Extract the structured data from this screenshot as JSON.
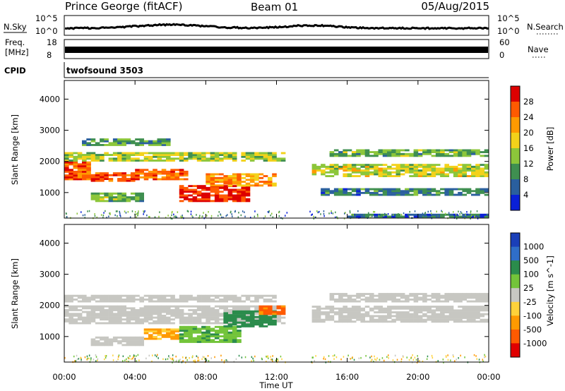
{
  "header": {
    "station": "Prince George (fitACF)",
    "beam": "Beam 01",
    "date": "05/Aug/2015"
  },
  "top_panels": {
    "nsky_label": "N.Sky",
    "nsky_ticks": [
      "10^5",
      "10^0"
    ],
    "nsearch_label": "N.Search",
    "freq_label_1": "Freq.",
    "freq_label_2": "[MHz]",
    "freq_ticks": [
      "18",
      "8"
    ],
    "nave_label": "Nave",
    "nave_ticks": [
      "60",
      "0"
    ],
    "cpid_label": "CPID",
    "cpid_value": "twofsound 3503"
  },
  "colorbars": {
    "power": {
      "label": "Power [dB]",
      "ticks": [
        "28",
        "24",
        "20",
        "16",
        "12",
        "8",
        "4"
      ],
      "colors": [
        "#dd0000",
        "#ff5a00",
        "#ff9a00",
        "#f3d21a",
        "#8cc63a",
        "#3f8f50",
        "#2a5f9e",
        "#0a20d8"
      ]
    },
    "velocity": {
      "label": "Velocity [m s^-1]",
      "ticks": [
        "1000",
        "500",
        "100",
        "25",
        "-25",
        "-100",
        "-500",
        "-1000"
      ],
      "colors": [
        "#1a3fb8",
        "#2f6ec8",
        "#2b8c4c",
        "#73c43a",
        "#c7c7c2",
        "#ffd23a",
        "#ff9a00",
        "#ff5a00",
        "#e00000"
      ]
    }
  },
  "chart_data": [
    {
      "type": "heatmap",
      "quantity": "Power",
      "ylabel": "Slant Range [km]",
      "xlabel": "Time UT",
      "x_ticks": [
        "00:00",
        "04:00",
        "08:00",
        "12:00",
        "16:00",
        "20:00",
        "00:00"
      ],
      "y_ticks": [
        1000,
        2000,
        3000,
        4000
      ],
      "ylim": [
        180,
        4600
      ],
      "xlim_hours": [
        0,
        24
      ],
      "bands": [
        {
          "t0": 0.0,
          "t1": 1.5,
          "r0": 1400,
          "r1": 1950,
          "level": 26
        },
        {
          "t0": 1.5,
          "t1": 4.0,
          "r0": 1350,
          "r1": 1650,
          "level": 27
        },
        {
          "t0": 4.0,
          "t1": 7.0,
          "r0": 1400,
          "r1": 1750,
          "level": 25
        },
        {
          "t0": 6.5,
          "t1": 10.5,
          "r0": 700,
          "r1": 1200,
          "level": 29
        },
        {
          "t0": 8.0,
          "t1": 12.0,
          "r0": 1200,
          "r1": 1600,
          "level": 22
        },
        {
          "t0": 0.0,
          "t1": 12.5,
          "r0": 2000,
          "r1": 2300,
          "level": 15
        },
        {
          "t0": 1.0,
          "t1": 6.0,
          "r0": 2500,
          "r1": 2700,
          "level": 11
        },
        {
          "t0": 1.5,
          "t1": 4.5,
          "r0": 700,
          "r1": 1000,
          "level": 12
        },
        {
          "t0": 14.0,
          "t1": 24.0,
          "r0": 1500,
          "r1": 1900,
          "level": 16
        },
        {
          "t0": 15.0,
          "t1": 24.0,
          "r0": 2150,
          "r1": 2350,
          "level": 12
        },
        {
          "t0": 14.5,
          "t1": 24.0,
          "r0": 900,
          "r1": 1100,
          "level": 8
        },
        {
          "t0": 16.0,
          "t1": 24.0,
          "r0": 200,
          "r1": 300,
          "level": 6
        }
      ]
    },
    {
      "type": "heatmap",
      "quantity": "Velocity",
      "ylabel": "Slant Range [km]",
      "xlabel": "Time UT",
      "x_ticks": [
        "00:00",
        "04:00",
        "08:00",
        "12:00",
        "16:00",
        "20:00",
        "00:00"
      ],
      "y_ticks": [
        1000,
        2000,
        3000,
        4000
      ],
      "ylim": [
        180,
        4600
      ],
      "xlim_hours": [
        0,
        24
      ],
      "bands": [
        {
          "t0": 0.0,
          "t1": 12.5,
          "r0": 1400,
          "r1": 2000,
          "level": 0
        },
        {
          "t0": 0.0,
          "t1": 12.0,
          "r0": 2100,
          "r1": 2300,
          "level": 0
        },
        {
          "t0": 4.5,
          "t1": 6.5,
          "r0": 900,
          "r1": 1250,
          "level": -120
        },
        {
          "t0": 6.5,
          "t1": 10.0,
          "r0": 800,
          "r1": 1300,
          "level": 80
        },
        {
          "t0": 9.0,
          "t1": 12.0,
          "r0": 1300,
          "r1": 1800,
          "level": 300
        },
        {
          "t0": 11.0,
          "t1": 12.5,
          "r0": 1700,
          "r1": 1950,
          "level": -700
        },
        {
          "t0": 14.0,
          "t1": 24.0,
          "r0": 1450,
          "r1": 1950,
          "level": 0
        },
        {
          "t0": 15.0,
          "t1": 24.0,
          "r0": 2100,
          "r1": 2350,
          "level": 0
        },
        {
          "t0": 1.5,
          "t1": 4.5,
          "r0": 700,
          "r1": 1000,
          "level": 0
        }
      ]
    }
  ]
}
